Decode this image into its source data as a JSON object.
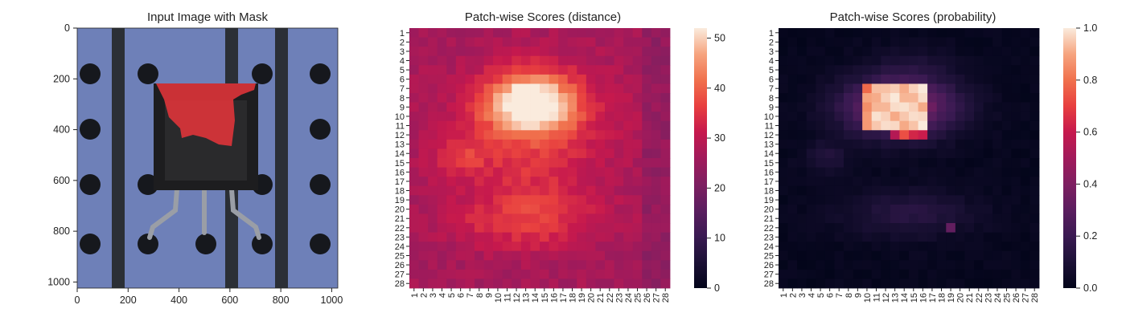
{
  "chart_data": [
    {
      "type": "image",
      "title": "Input Image with Mask",
      "x_ticks": [
        0,
        200,
        400,
        600,
        800,
        1000
      ],
      "y_ticks": [
        0,
        200,
        400,
        600,
        800,
        1000
      ],
      "xlim": [
        0,
        1024
      ],
      "ylim": [
        0,
        1024
      ],
      "content": "transistor on blue perforated board with red anomaly mask overlay",
      "colors": {
        "board": "#6e80b8",
        "stripe": "#2b2f36",
        "hole": "#16181d",
        "mask": "#e3343a",
        "component": "#1d1d1f"
      }
    },
    {
      "type": "heatmap",
      "title": "Patch-wise Scores (distance)",
      "rows": [
        "1",
        "2",
        "3",
        "4",
        "5",
        "6",
        "7",
        "8",
        "9",
        "10",
        "11",
        "12",
        "13",
        "14",
        "15",
        "16",
        "17",
        "18",
        "19",
        "20",
        "21",
        "22",
        "23",
        "24",
        "25",
        "26",
        "27",
        "28"
      ],
      "cols": [
        "1",
        "2",
        "3",
        "4",
        "5",
        "6",
        "7",
        "8",
        "9",
        "10",
        "11",
        "12",
        "13",
        "14",
        "15",
        "16",
        "17",
        "18",
        "19",
        "20",
        "21",
        "22",
        "23",
        "24",
        "25",
        "26",
        "27",
        "28"
      ],
      "colorbar": {
        "min": 0,
        "max": 52,
        "ticks": [
          0,
          10,
          20,
          30,
          40,
          50
        ]
      },
      "colormap": "rocket",
      "summary": {
        "background_range": [
          22,
          30
        ],
        "hot_region": {
          "rows": [
            6,
            12
          ],
          "cols": [
            10,
            18
          ],
          "peak": 52
        },
        "secondary_region": {
          "rows": [
            19,
            24
          ],
          "cols": [
            8,
            20
          ],
          "value_approx": 35
        },
        "left_region": {
          "rows": [
            13,
            16
          ],
          "cols": [
            3,
            9
          ],
          "value_approx": 34
        }
      }
    },
    {
      "type": "heatmap",
      "title": "Patch-wise Scores (probability)",
      "rows": [
        "1",
        "2",
        "3",
        "4",
        "5",
        "6",
        "7",
        "8",
        "9",
        "10",
        "11",
        "12",
        "13",
        "14",
        "15",
        "16",
        "17",
        "18",
        "19",
        "20",
        "21",
        "22",
        "23",
        "24",
        "25",
        "26",
        "27",
        "28"
      ],
      "cols": [
        "1",
        "2",
        "3",
        "4",
        "5",
        "6",
        "7",
        "8",
        "9",
        "10",
        "11",
        "12",
        "13",
        "14",
        "15",
        "16",
        "17",
        "18",
        "19",
        "20",
        "21",
        "22",
        "23",
        "24",
        "25",
        "26",
        "27",
        "28"
      ],
      "colorbar": {
        "min": 0.0,
        "max": 1.0,
        "ticks": [
          "0.0",
          "0.2",
          "0.4",
          "0.6",
          "0.8",
          "1.0"
        ]
      },
      "colormap": "rocket",
      "summary": {
        "background_range": [
          0.0,
          0.05
        ],
        "hot_region": {
          "rows": [
            7,
            11
          ],
          "cols": [
            10,
            17
          ],
          "peak": 1.0
        }
      }
    }
  ]
}
